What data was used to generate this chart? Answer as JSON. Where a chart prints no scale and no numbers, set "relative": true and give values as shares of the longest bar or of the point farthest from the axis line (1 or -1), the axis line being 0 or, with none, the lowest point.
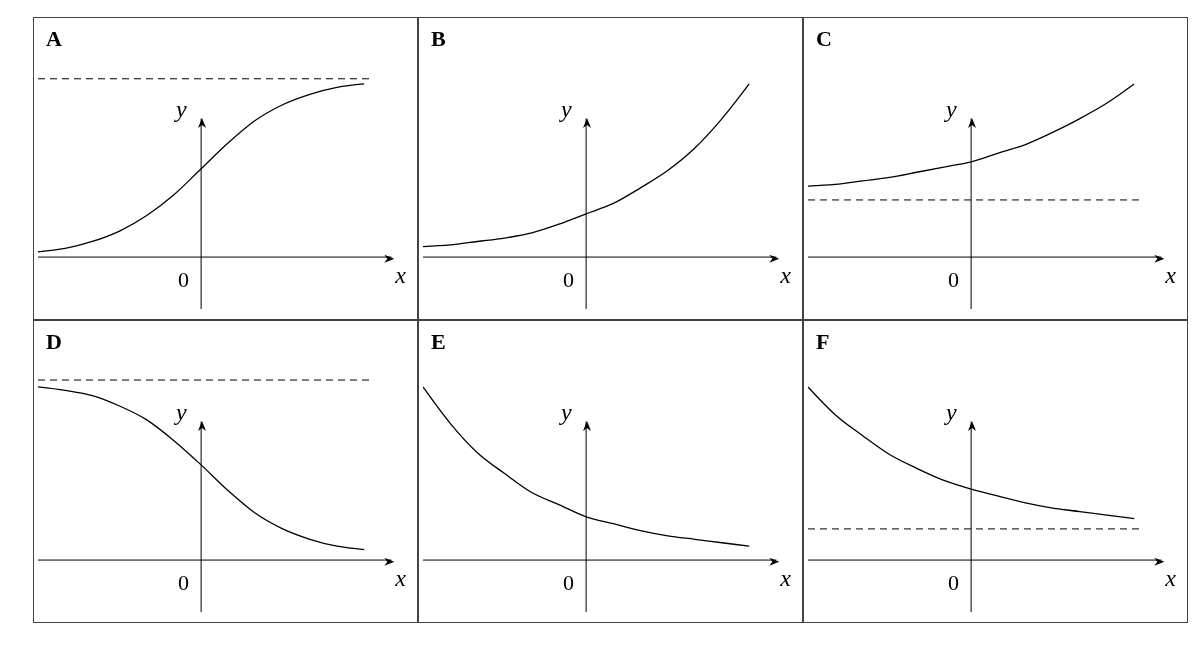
{
  "chart_data": [
    {
      "type": "line",
      "title": "A",
      "xlabel": "x",
      "ylabel": "y",
      "relative": true,
      "annotations": [
        "0"
      ],
      "categories": [
        null,
        null,
        null,
        null,
        null,
        null,
        null,
        null,
        null,
        null,
        null,
        null,
        null
      ],
      "color": "#000000",
      "values": [
        0.03,
        0.05,
        0.09,
        0.15,
        0.24,
        0.36,
        0.51,
        0.66,
        0.79,
        0.88,
        0.94,
        0.98,
        1
      ],
      "ref_lines": [
        {
          "axis": "y",
          "value": 1.03,
          "line_style": "dashed",
          "color": "#000000"
        }
      ]
    },
    {
      "type": "line",
      "title": "B",
      "xlabel": "x",
      "ylabel": "y",
      "relative": true,
      "annotations": [
        "0"
      ],
      "categories": [
        null,
        null,
        null,
        null,
        null,
        null,
        null,
        null,
        null,
        null,
        null,
        null,
        null
      ],
      "color": "#000000",
      "values": [
        0.06,
        0.07,
        0.09,
        0.11,
        0.14,
        0.19,
        0.25,
        0.31,
        0.4,
        0.5,
        0.63,
        0.8,
        1
      ]
    },
    {
      "type": "line",
      "title": "C",
      "xlabel": "x",
      "ylabel": "y",
      "relative": true,
      "annotations": [
        "0"
      ],
      "categories": [
        null,
        null,
        null,
        null,
        null,
        null,
        null,
        null,
        null,
        null,
        null,
        null,
        null
      ],
      "color": "#000000",
      "values": [
        0.41,
        0.42,
        0.44,
        0.46,
        0.49,
        0.52,
        0.55,
        0.6,
        0.65,
        0.72,
        0.8,
        0.89,
        1
      ],
      "ref_lines": [
        {
          "axis": "y",
          "value": 0.33,
          "line_style": "dashed",
          "color": "#000000"
        }
      ]
    },
    {
      "type": "line",
      "title": "D",
      "xlabel": "x",
      "ylabel": "y",
      "relative": true,
      "annotations": [
        "0"
      ],
      "categories": [
        null,
        null,
        null,
        null,
        null,
        null,
        null,
        null,
        null,
        null,
        null,
        null,
        null
      ],
      "color": "#000000",
      "values": [
        1,
        0.98,
        0.95,
        0.89,
        0.81,
        0.69,
        0.55,
        0.4,
        0.27,
        0.18,
        0.12,
        0.08,
        0.06
      ],
      "ref_lines": [
        {
          "axis": "y",
          "value": 1.04,
          "line_style": "dashed",
          "color": "#000000"
        }
      ]
    },
    {
      "type": "line",
      "title": "E",
      "xlabel": "x",
      "ylabel": "y",
      "relative": true,
      "annotations": [
        "0"
      ],
      "categories": [
        null,
        null,
        null,
        null,
        null,
        null,
        null,
        null,
        null,
        null,
        null,
        null,
        null
      ],
      "color": "#000000",
      "values": [
        1,
        0.79,
        0.62,
        0.5,
        0.39,
        0.32,
        0.25,
        0.21,
        0.17,
        0.14,
        0.12,
        0.1,
        0.08
      ]
    },
    {
      "type": "line",
      "title": "F",
      "xlabel": "x",
      "ylabel": "y",
      "relative": true,
      "annotations": [
        "0"
      ],
      "categories": [
        null,
        null,
        null,
        null,
        null,
        null,
        null,
        null,
        null,
        null,
        null,
        null,
        null
      ],
      "color": "#000000",
      "values": [
        1,
        0.84,
        0.72,
        0.61,
        0.53,
        0.46,
        0.41,
        0.37,
        0.33,
        0.3,
        0.28,
        0.26,
        0.24
      ],
      "ref_lines": [
        {
          "axis": "y",
          "value": 0.18,
          "line_style": "dashed",
          "color": "#000000"
        }
      ]
    }
  ]
}
